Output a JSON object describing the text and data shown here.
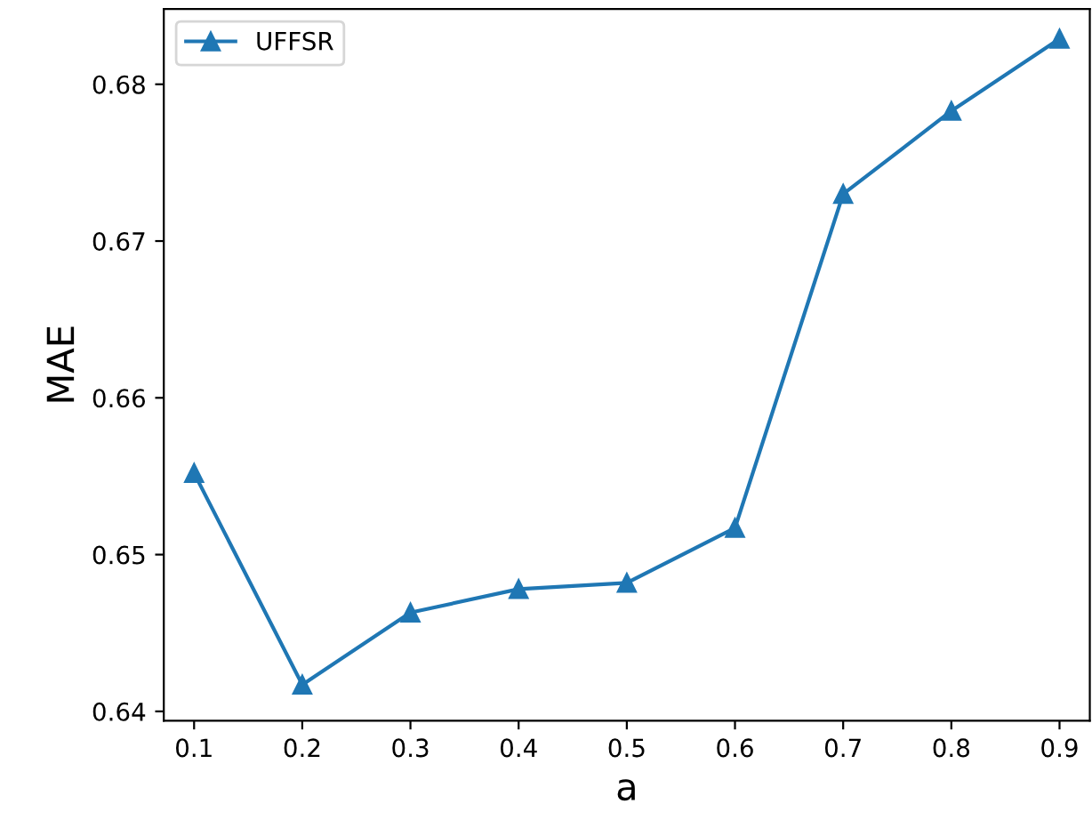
{
  "chart_data": {
    "type": "line",
    "xlabel": "a",
    "ylabel": "MAE",
    "x": [
      0.1,
      0.2,
      0.3,
      0.4,
      0.5,
      0.6,
      0.7,
      0.8,
      0.9
    ],
    "series": [
      {
        "name": "UFFSR",
        "color": "#1f77b4",
        "values": [
          0.6552,
          0.6417,
          0.6463,
          0.6478,
          0.6482,
          0.6517,
          0.673,
          0.6783,
          0.6829
        ]
      }
    ],
    "xlim": [
      0.072,
      0.928
    ],
    "ylim": [
      0.6394,
      0.6848
    ],
    "xticks": [
      {
        "value": 0.1,
        "label": "0.1"
      },
      {
        "value": 0.2,
        "label": "0.2"
      },
      {
        "value": 0.3,
        "label": "0.3"
      },
      {
        "value": 0.4,
        "label": "0.4"
      },
      {
        "value": 0.5,
        "label": "0.5"
      },
      {
        "value": 0.6,
        "label": "0.6"
      },
      {
        "value": 0.7,
        "label": "0.7"
      },
      {
        "value": 0.8,
        "label": "0.8"
      },
      {
        "value": 0.9,
        "label": "0.9"
      }
    ],
    "yticks": [
      {
        "value": 0.64,
        "label": "0.64"
      },
      {
        "value": 0.65,
        "label": "0.65"
      },
      {
        "value": 0.66,
        "label": "0.66"
      },
      {
        "value": 0.67,
        "label": "0.67"
      },
      {
        "value": 0.68,
        "label": "0.68"
      }
    ],
    "marker": "triangle",
    "line_style": "solid",
    "legend": "top left",
    "grid": false
  }
}
